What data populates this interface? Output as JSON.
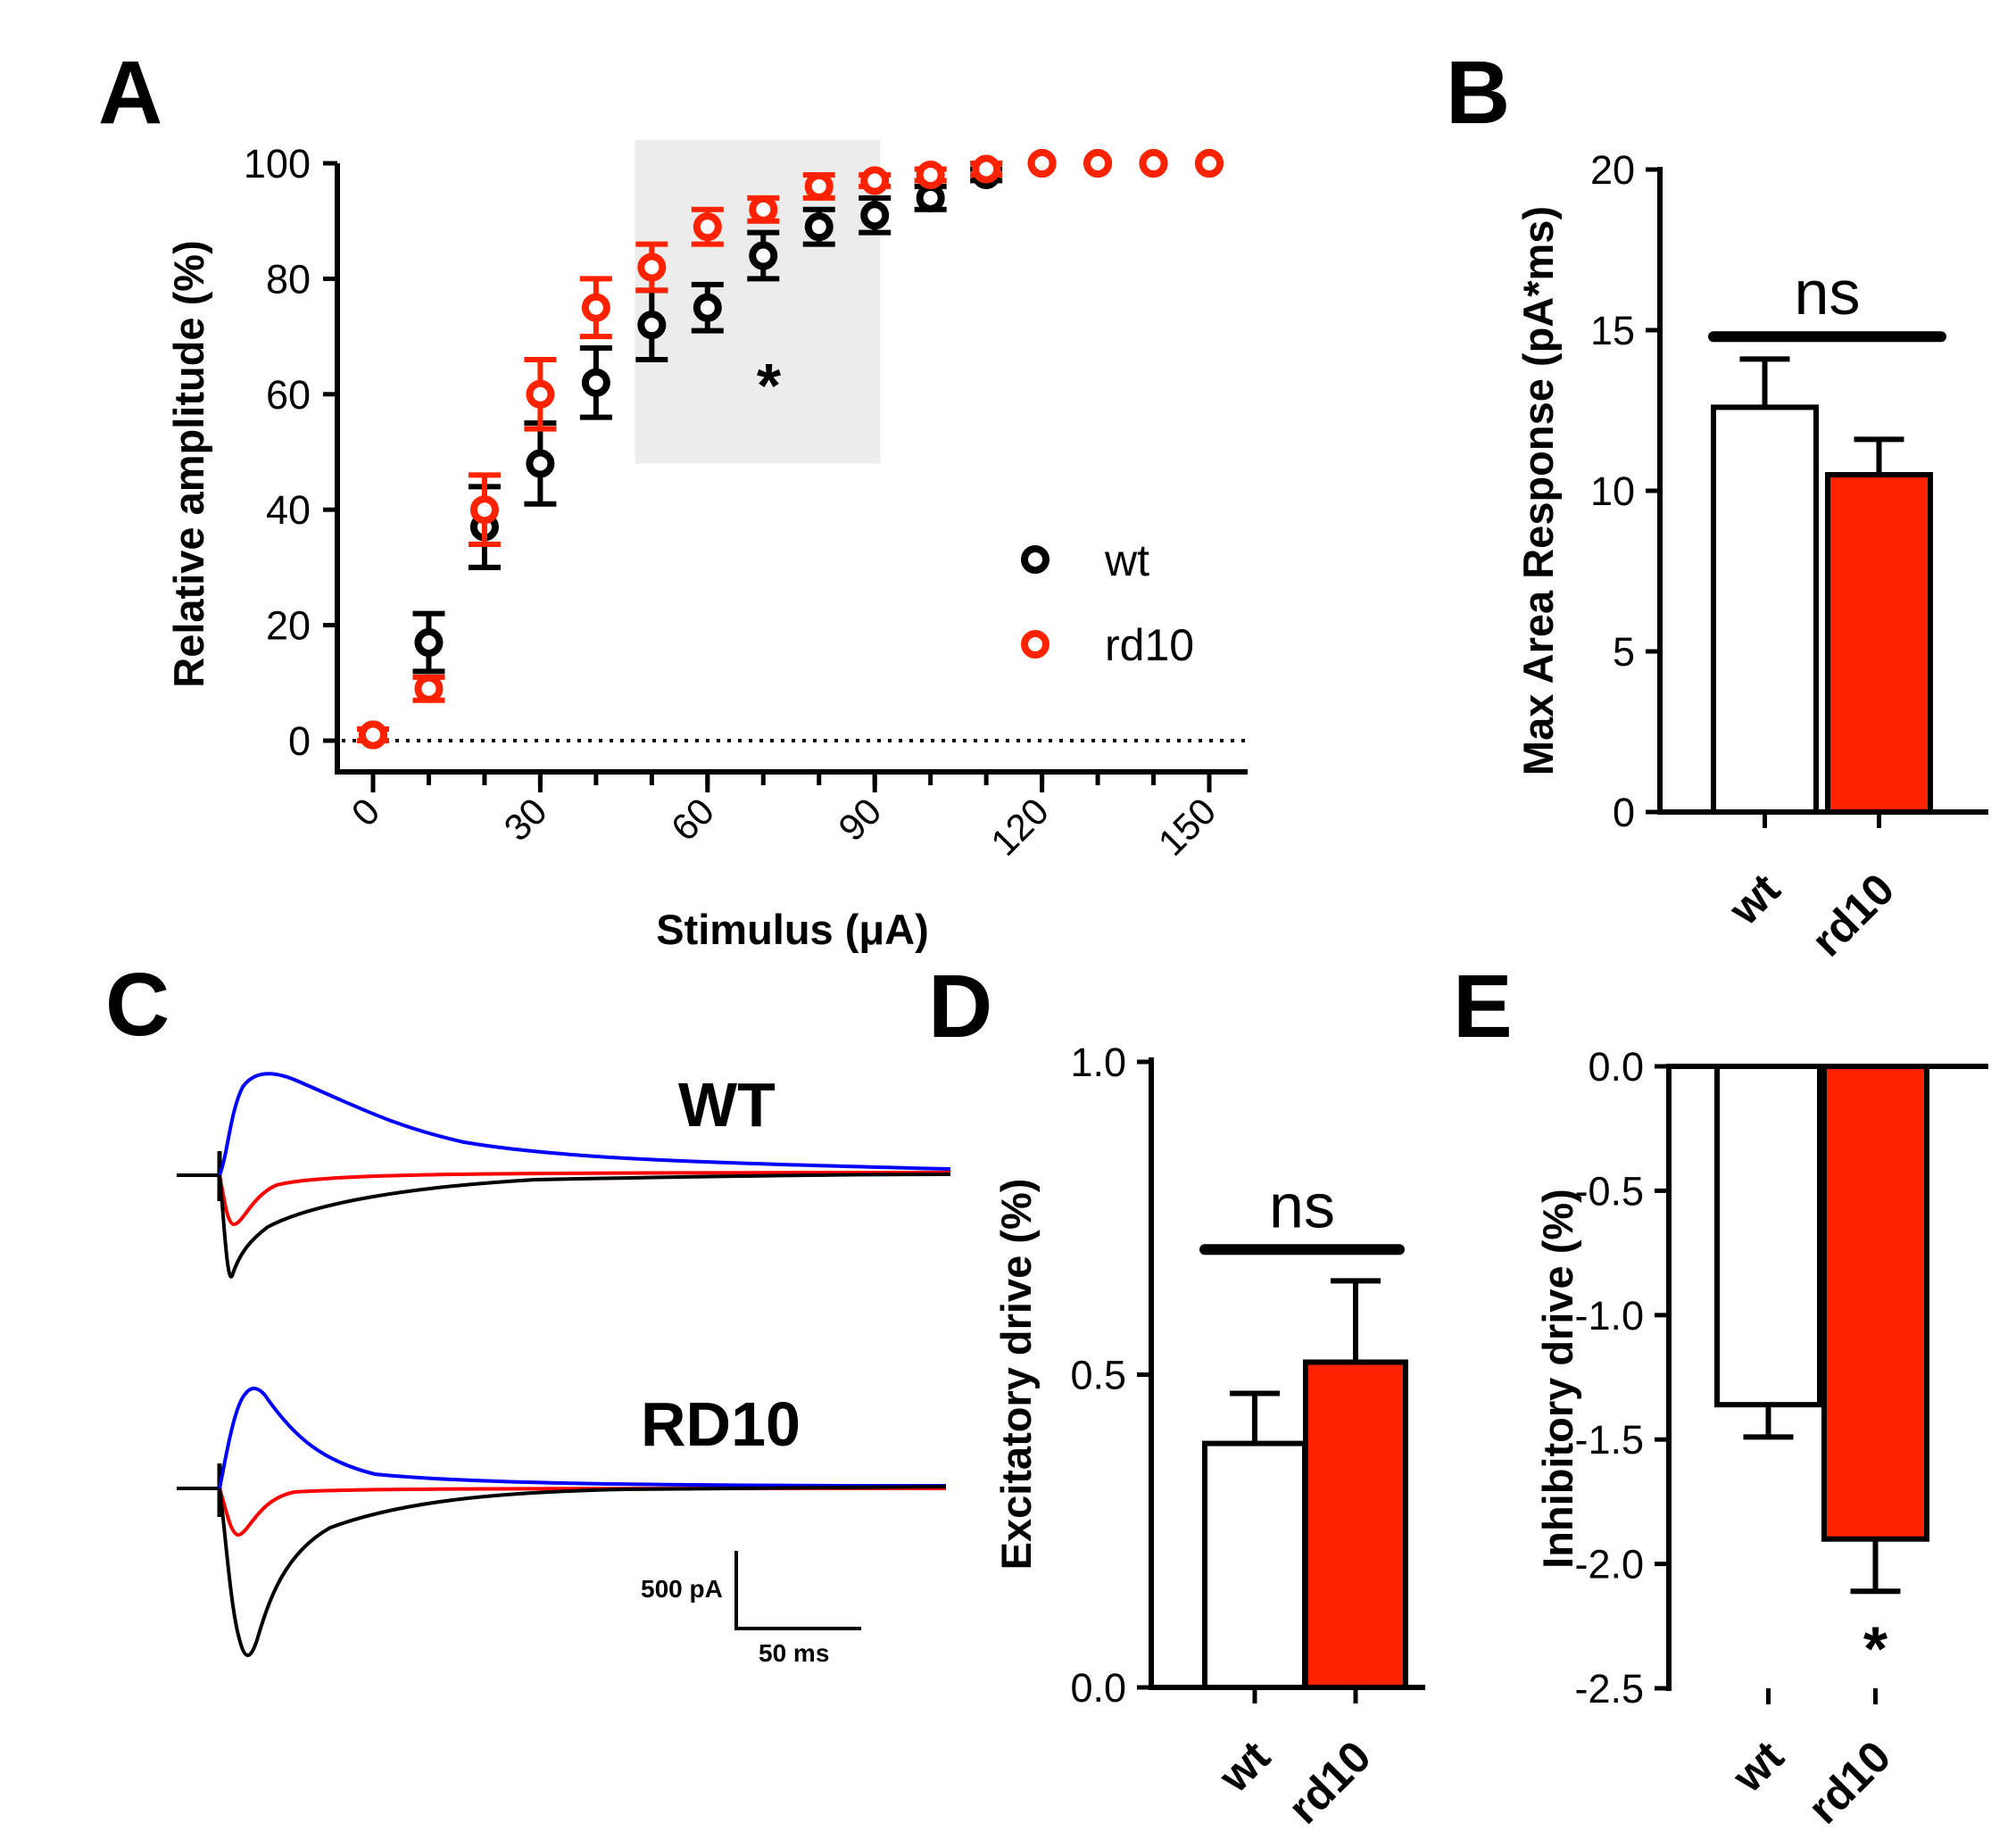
{
  "colors": {
    "wt": "#000000",
    "rd10": "#ff2200",
    "shade": "#ececec",
    "trace_blue": "#0000ff",
    "trace_red": "#ff0000",
    "trace_black": "#000000"
  },
  "chart_data": [
    {
      "id": "A",
      "panel_label": "A",
      "type": "scatter",
      "xlabel": "Stimulus (μA)",
      "ylabel": "Relative amplitude (%)",
      "xlim": [
        -7,
        155
      ],
      "ylim": [
        -5,
        100
      ],
      "xticks": [
        "0",
        "30",
        "60",
        "90",
        "120",
        "150"
      ],
      "yticks": [
        "0",
        "20",
        "40",
        "60",
        "80",
        "100"
      ],
      "grid": false,
      "zero_line": "dotted",
      "legend": "right",
      "shaded_region": {
        "x": [
          47,
          91
        ],
        "y": [
          48,
          104
        ]
      },
      "significance": {
        "text": "*",
        "x": 71,
        "y": 64
      },
      "series": [
        {
          "name": "wt",
          "color": "#000000",
          "x": [
            0,
            10,
            20,
            30,
            40,
            50,
            60,
            70,
            80,
            90,
            100,
            110,
            120,
            130,
            140,
            150
          ],
          "y": [
            1,
            17,
            37,
            48,
            62,
            72,
            75,
            84,
            89,
            91,
            94,
            98,
            100,
            100,
            100,
            100
          ],
          "err": [
            1,
            5,
            7,
            7,
            6,
            6,
            4,
            4,
            3,
            3,
            2,
            1,
            0,
            0,
            0,
            0
          ]
        },
        {
          "name": "rd10",
          "color": "#ff2200",
          "x": [
            0,
            10,
            20,
            30,
            40,
            50,
            60,
            70,
            80,
            90,
            100,
            110,
            120,
            130,
            140,
            150
          ],
          "y": [
            1,
            9,
            40,
            60,
            75,
            82,
            89,
            92,
            96,
            97,
            98,
            99,
            100,
            100,
            100,
            100
          ],
          "err": [
            1,
            2,
            6,
            6,
            5,
            4,
            3,
            2,
            2,
            1,
            1,
            1,
            0,
            0,
            0,
            0
          ]
        }
      ]
    },
    {
      "id": "B",
      "panel_label": "B",
      "type": "bar",
      "categories": [
        "wt",
        "rd10"
      ],
      "values": [
        12.6,
        10.5
      ],
      "err": [
        1.5,
        1.1
      ],
      "ylabel": "Max Area Response (pA*ms)",
      "ylim": [
        0,
        20
      ],
      "yticks": [
        "0",
        "5",
        "10",
        "15",
        "20"
      ],
      "significance": "ns",
      "sig_y": 14.8
    },
    {
      "id": "D",
      "panel_label": "D",
      "type": "bar",
      "categories": [
        "wt",
        "rd10"
      ],
      "values": [
        0.39,
        0.52
      ],
      "err": [
        0.08,
        0.13
      ],
      "ylabel": "Excitatory drive (%)",
      "ylim": [
        0,
        1
      ],
      "yticks": [
        "0.0",
        "0.5",
        "1.0"
      ],
      "significance": "ns",
      "sig_y": 0.7
    },
    {
      "id": "E",
      "panel_label": "E",
      "type": "bar",
      "categories": [
        "wt",
        "rd10"
      ],
      "values": [
        -1.36,
        -1.9
      ],
      "err": [
        0.13,
        0.21
      ],
      "ylabel": "Inhibitory drive (%)",
      "ylim": [
        -2.5,
        0
      ],
      "yticks": [
        "0.0",
        "-0.5",
        "-1.0",
        "-1.5",
        "-2.0",
        "-2.5"
      ],
      "significance": "*"
    }
  ],
  "traces": {
    "panel_label": "C",
    "wt_label": "WT",
    "rd10_label": "RD10",
    "scale_y_label": "500 pA",
    "scale_x_label": "50 ms"
  }
}
